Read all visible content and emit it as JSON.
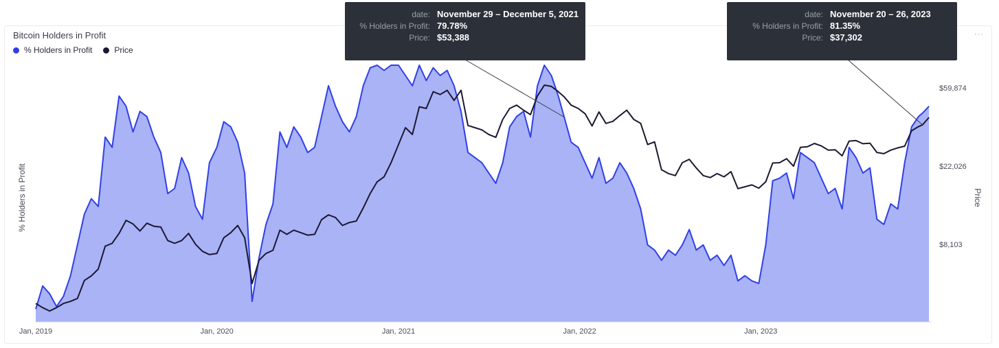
{
  "header": {
    "title": "Bitcoin Holders in Profit",
    "more_label": "···"
  },
  "colors": {
    "profit_line": "#2f3fe6",
    "profit_fill": "#a9b3f6",
    "price_line": "#1c1730",
    "axis_text": "#4a4a57",
    "tooltip_bg": "#2c3039"
  },
  "chart_data": {
    "type": "area",
    "title": "Bitcoin Holders in Profit",
    "ylabel": "% Holders in Profit",
    "y2label": "Price",
    "y2scale": "log",
    "x_ticks": [
      "Jan, 2019",
      "Jan, 2020",
      "Jan, 2021",
      "Jan, 2022",
      "Jan, 2023"
    ],
    "y2_ticks": [
      "$59,874",
      "$22,026",
      "$8,103"
    ],
    "y2_tick_values": [
      59874,
      22026,
      8103
    ],
    "ylim": [
      0,
      100
    ],
    "y2lim": [
      3000,
      80000
    ],
    "xlim": [
      "2019-01-01",
      "2023-12-10"
    ],
    "legend": "top-left",
    "grid": false,
    "series": [
      {
        "name": "% Holders in Profit",
        "color": "#2f3fe6",
        "fill": true,
        "axis": "left",
        "points": [
          [
            "2019-01-01",
            5
          ],
          [
            "2019-01-15",
            14
          ],
          [
            "2019-01-29",
            11
          ],
          [
            "2019-02-12",
            6
          ],
          [
            "2019-02-26",
            10
          ],
          [
            "2019-03-12",
            18
          ],
          [
            "2019-03-26",
            30
          ],
          [
            "2019-04-09",
            42
          ],
          [
            "2019-04-23",
            48
          ],
          [
            "2019-05-07",
            45
          ],
          [
            "2019-05-21",
            72
          ],
          [
            "2019-06-04",
            68
          ],
          [
            "2019-06-18",
            88
          ],
          [
            "2019-07-02",
            84
          ],
          [
            "2019-07-16",
            74
          ],
          [
            "2019-07-30",
            82
          ],
          [
            "2019-08-13",
            80
          ],
          [
            "2019-08-27",
            72
          ],
          [
            "2019-09-10",
            66
          ],
          [
            "2019-09-24",
            50
          ],
          [
            "2019-10-08",
            52
          ],
          [
            "2019-10-22",
            64
          ],
          [
            "2019-11-05",
            58
          ],
          [
            "2019-11-19",
            45
          ],
          [
            "2019-12-03",
            40
          ],
          [
            "2019-12-17",
            62
          ],
          [
            "2020-01-01",
            68
          ],
          [
            "2020-01-15",
            78
          ],
          [
            "2020-01-29",
            76
          ],
          [
            "2020-02-12",
            70
          ],
          [
            "2020-02-26",
            58
          ],
          [
            "2020-03-12",
            8
          ],
          [
            "2020-03-26",
            25
          ],
          [
            "2020-04-09",
            38
          ],
          [
            "2020-04-23",
            46
          ],
          [
            "2020-05-07",
            74
          ],
          [
            "2020-05-21",
            68
          ],
          [
            "2020-06-04",
            76
          ],
          [
            "2020-06-18",
            72
          ],
          [
            "2020-07-02",
            66
          ],
          [
            "2020-07-16",
            68
          ],
          [
            "2020-07-30",
            80
          ],
          [
            "2020-08-13",
            92
          ],
          [
            "2020-08-27",
            84
          ],
          [
            "2020-09-10",
            78
          ],
          [
            "2020-09-24",
            74
          ],
          [
            "2020-10-08",
            80
          ],
          [
            "2020-10-22",
            92
          ],
          [
            "2020-11-05",
            99
          ],
          [
            "2020-11-19",
            100
          ],
          [
            "2020-12-03",
            98
          ],
          [
            "2020-12-17",
            100
          ],
          [
            "2021-01-01",
            100
          ],
          [
            "2021-01-15",
            96
          ],
          [
            "2021-01-29",
            92
          ],
          [
            "2021-02-12",
            100
          ],
          [
            "2021-02-26",
            94
          ],
          [
            "2021-03-12",
            99
          ],
          [
            "2021-03-26",
            96
          ],
          [
            "2021-04-09",
            98
          ],
          [
            "2021-04-23",
            92
          ],
          [
            "2021-05-07",
            82
          ],
          [
            "2021-05-21",
            66
          ],
          [
            "2021-06-04",
            64
          ],
          [
            "2021-06-18",
            62
          ],
          [
            "2021-07-02",
            58
          ],
          [
            "2021-07-16",
            54
          ],
          [
            "2021-07-30",
            62
          ],
          [
            "2021-08-13",
            76
          ],
          [
            "2021-08-27",
            80
          ],
          [
            "2021-09-10",
            82
          ],
          [
            "2021-09-24",
            72
          ],
          [
            "2021-10-08",
            92
          ],
          [
            "2021-10-22",
            100
          ],
          [
            "2021-11-05",
            96
          ],
          [
            "2021-11-19",
            88
          ],
          [
            "2021-12-01",
            79.78
          ],
          [
            "2021-12-15",
            70
          ],
          [
            "2021-12-29",
            68
          ],
          [
            "2022-01-12",
            62
          ],
          [
            "2022-01-26",
            56
          ],
          [
            "2022-02-09",
            64
          ],
          [
            "2022-02-23",
            54
          ],
          [
            "2022-03-09",
            56
          ],
          [
            "2022-03-23",
            62
          ],
          [
            "2022-04-06",
            58
          ],
          [
            "2022-04-20",
            52
          ],
          [
            "2022-05-04",
            44
          ],
          [
            "2022-05-18",
            30
          ],
          [
            "2022-06-01",
            28
          ],
          [
            "2022-06-15",
            24
          ],
          [
            "2022-06-29",
            28
          ],
          [
            "2022-07-13",
            26
          ],
          [
            "2022-07-27",
            30
          ],
          [
            "2022-08-10",
            36
          ],
          [
            "2022-08-24",
            28
          ],
          [
            "2022-09-07",
            30
          ],
          [
            "2022-09-21",
            24
          ],
          [
            "2022-10-05",
            26
          ],
          [
            "2022-10-19",
            22
          ],
          [
            "2022-11-02",
            26
          ],
          [
            "2022-11-16",
            16
          ],
          [
            "2022-11-30",
            18
          ],
          [
            "2022-12-14",
            16
          ],
          [
            "2022-12-28",
            15
          ],
          [
            "2023-01-11",
            30
          ],
          [
            "2023-01-25",
            55
          ],
          [
            "2023-02-08",
            56
          ],
          [
            "2023-02-22",
            58
          ],
          [
            "2023-03-08",
            48
          ],
          [
            "2023-03-22",
            66
          ],
          [
            "2023-04-05",
            64
          ],
          [
            "2023-04-19",
            62
          ],
          [
            "2023-05-03",
            56
          ],
          [
            "2023-05-17",
            50
          ],
          [
            "2023-05-31",
            52
          ],
          [
            "2023-06-14",
            44
          ],
          [
            "2023-06-28",
            68
          ],
          [
            "2023-07-12",
            64
          ],
          [
            "2023-07-26",
            58
          ],
          [
            "2023-08-09",
            60
          ],
          [
            "2023-08-23",
            40
          ],
          [
            "2023-09-06",
            38
          ],
          [
            "2023-09-20",
            46
          ],
          [
            "2023-10-04",
            44
          ],
          [
            "2023-10-18",
            62
          ],
          [
            "2023-11-01",
            76
          ],
          [
            "2023-11-15",
            80
          ],
          [
            "2023-11-23",
            81.35
          ],
          [
            "2023-12-06",
            84
          ]
        ]
      },
      {
        "name": "Price",
        "color": "#1c1730",
        "fill": false,
        "axis": "right",
        "points": [
          [
            "2019-01-01",
            3800
          ],
          [
            "2019-01-15",
            3600
          ],
          [
            "2019-01-29",
            3450
          ],
          [
            "2019-02-12",
            3600
          ],
          [
            "2019-02-26",
            3800
          ],
          [
            "2019-03-12",
            3900
          ],
          [
            "2019-03-26",
            4050
          ],
          [
            "2019-04-09",
            5100
          ],
          [
            "2019-04-23",
            5400
          ],
          [
            "2019-05-07",
            5900
          ],
          [
            "2019-05-21",
            7900
          ],
          [
            "2019-06-04",
            8200
          ],
          [
            "2019-06-18",
            9300
          ],
          [
            "2019-07-02",
            11000
          ],
          [
            "2019-07-16",
            10500
          ],
          [
            "2019-07-30",
            9600
          ],
          [
            "2019-08-13",
            10600
          ],
          [
            "2019-08-27",
            10200
          ],
          [
            "2019-09-10",
            10100
          ],
          [
            "2019-09-24",
            8500
          ],
          [
            "2019-10-08",
            8200
          ],
          [
            "2019-10-22",
            8500
          ],
          [
            "2019-11-05",
            9300
          ],
          [
            "2019-11-19",
            8100
          ],
          [
            "2019-12-03",
            7400
          ],
          [
            "2019-12-17",
            7100
          ],
          [
            "2020-01-01",
            7200
          ],
          [
            "2020-01-15",
            8800
          ],
          [
            "2020-01-29",
            9400
          ],
          [
            "2020-02-12",
            10300
          ],
          [
            "2020-02-26",
            8800
          ],
          [
            "2020-03-12",
            4900
          ],
          [
            "2020-03-26",
            6600
          ],
          [
            "2020-04-09",
            7200
          ],
          [
            "2020-04-23",
            7500
          ],
          [
            "2020-05-07",
            9700
          ],
          [
            "2020-05-21",
            9200
          ],
          [
            "2020-06-04",
            9700
          ],
          [
            "2020-06-18",
            9400
          ],
          [
            "2020-07-02",
            9100
          ],
          [
            "2020-07-16",
            9200
          ],
          [
            "2020-07-30",
            11100
          ],
          [
            "2020-08-13",
            11800
          ],
          [
            "2020-08-27",
            11400
          ],
          [
            "2020-09-10",
            10300
          ],
          [
            "2020-09-24",
            10700
          ],
          [
            "2020-10-08",
            10900
          ],
          [
            "2020-10-22",
            12900
          ],
          [
            "2020-11-05",
            15500
          ],
          [
            "2020-11-19",
            18000
          ],
          [
            "2020-12-03",
            19200
          ],
          [
            "2020-12-17",
            23000
          ],
          [
            "2021-01-01",
            29000
          ],
          [
            "2021-01-15",
            36000
          ],
          [
            "2021-01-29",
            33000
          ],
          [
            "2021-02-12",
            47000
          ],
          [
            "2021-02-26",
            46000
          ],
          [
            "2021-03-12",
            57000
          ],
          [
            "2021-03-26",
            55000
          ],
          [
            "2021-04-09",
            58000
          ],
          [
            "2021-04-23",
            51000
          ],
          [
            "2021-05-07",
            58000
          ],
          [
            "2021-05-21",
            37000
          ],
          [
            "2021-06-04",
            36000
          ],
          [
            "2021-06-18",
            35000
          ],
          [
            "2021-07-02",
            33000
          ],
          [
            "2021-07-16",
            31800
          ],
          [
            "2021-07-30",
            40000
          ],
          [
            "2021-08-13",
            46000
          ],
          [
            "2021-08-27",
            48000
          ],
          [
            "2021-09-10",
            45000
          ],
          [
            "2021-09-24",
            42500
          ],
          [
            "2021-10-08",
            54000
          ],
          [
            "2021-10-22",
            62000
          ],
          [
            "2021-11-05",
            61000
          ],
          [
            "2021-11-19",
            57000
          ],
          [
            "2021-12-01",
            53388
          ],
          [
            "2021-12-15",
            48000
          ],
          [
            "2021-12-29",
            46000
          ],
          [
            "2022-01-12",
            43000
          ],
          [
            "2022-01-26",
            36800
          ],
          [
            "2022-02-09",
            44000
          ],
          [
            "2022-02-23",
            38000
          ],
          [
            "2022-03-09",
            39000
          ],
          [
            "2022-03-23",
            42000
          ],
          [
            "2022-04-06",
            45000
          ],
          [
            "2022-04-20",
            40000
          ],
          [
            "2022-05-04",
            38000
          ],
          [
            "2022-05-18",
            29000
          ],
          [
            "2022-06-01",
            30000
          ],
          [
            "2022-06-15",
            21000
          ],
          [
            "2022-06-29",
            20000
          ],
          [
            "2022-07-13",
            19500
          ],
          [
            "2022-07-27",
            23000
          ],
          [
            "2022-08-10",
            24000
          ],
          [
            "2022-08-24",
            21500
          ],
          [
            "2022-09-07",
            19500
          ],
          [
            "2022-09-21",
            19000
          ],
          [
            "2022-10-05",
            20000
          ],
          [
            "2022-10-19",
            19200
          ],
          [
            "2022-11-02",
            20500
          ],
          [
            "2022-11-16",
            16500
          ],
          [
            "2022-11-30",
            16900
          ],
          [
            "2022-12-14",
            17300
          ],
          [
            "2022-12-28",
            16600
          ],
          [
            "2023-01-11",
            18000
          ],
          [
            "2023-01-25",
            22900
          ],
          [
            "2023-02-08",
            23000
          ],
          [
            "2023-02-22",
            24200
          ],
          [
            "2023-03-08",
            22000
          ],
          [
            "2023-03-22",
            28000
          ],
          [
            "2023-04-05",
            28200
          ],
          [
            "2023-04-19",
            29400
          ],
          [
            "2023-05-03",
            28500
          ],
          [
            "2023-05-17",
            27000
          ],
          [
            "2023-05-31",
            27100
          ],
          [
            "2023-06-14",
            25100
          ],
          [
            "2023-06-28",
            30300
          ],
          [
            "2023-07-12",
            30500
          ],
          [
            "2023-07-26",
            29300
          ],
          [
            "2023-08-09",
            29500
          ],
          [
            "2023-08-23",
            26200
          ],
          [
            "2023-09-06",
            25800
          ],
          [
            "2023-09-20",
            27000
          ],
          [
            "2023-10-04",
            27800
          ],
          [
            "2023-10-18",
            28400
          ],
          [
            "2023-11-01",
            34600
          ],
          [
            "2023-11-15",
            36500
          ],
          [
            "2023-11-23",
            37302
          ],
          [
            "2023-12-06",
            41000
          ]
        ]
      }
    ]
  },
  "tooltips": [
    {
      "anchor_series": "% Holders in Profit",
      "anchor_date": "2021-12-01",
      "rows": [
        {
          "key": "date:",
          "value": "November 29 – December 5, 2021"
        },
        {
          "key": "% Holders in Profit:",
          "value": "79.78%"
        },
        {
          "key": "Price:",
          "value": "$53,388"
        }
      ]
    },
    {
      "anchor_series": "Price",
      "anchor_date": "2023-11-23",
      "rows": [
        {
          "key": "date:",
          "value": "November 20 – 26, 2023"
        },
        {
          "key": "% Holders in Profit:",
          "value": "81.35%"
        },
        {
          "key": "Price:",
          "value": "$37,302"
        }
      ]
    }
  ]
}
